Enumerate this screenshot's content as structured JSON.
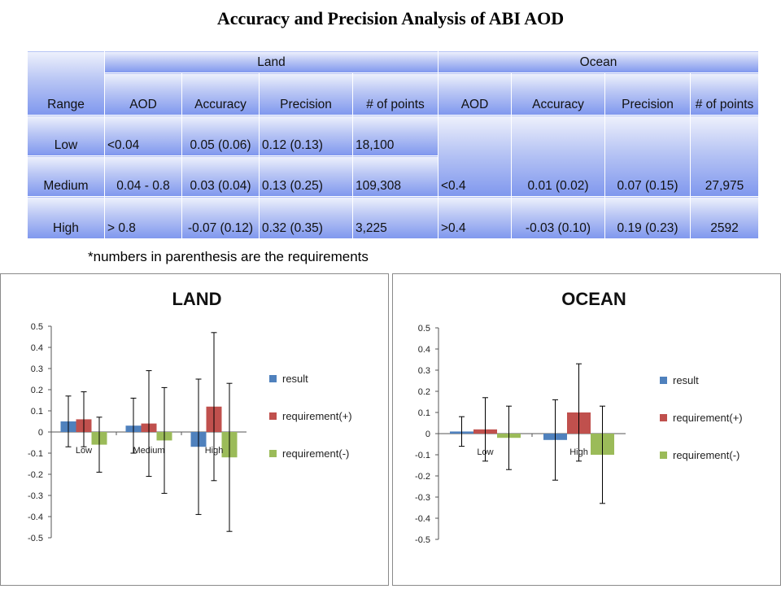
{
  "page_title": "Accuracy and Precision Analysis of ABI AOD",
  "table": {
    "range_header": "Range",
    "group_headers": [
      "Land",
      "Ocean"
    ],
    "sub_headers": [
      "AOD",
      "Accuracy",
      "Precision",
      "# of points",
      "AOD",
      "Accuracy",
      "Precision",
      "# of points"
    ],
    "rows": [
      {
        "range": "Low",
        "land": [
          "<0.04",
          "0.05 (0.06)",
          "0.12 (0.13)",
          "18,100"
        ]
      },
      {
        "range": "Medium",
        "land": [
          "0.04 - 0.8",
          "0.03 (0.04)",
          "0.13 (0.25)",
          "109,308"
        ]
      },
      {
        "range": "High",
        "land": [
          "> 0.8",
          "-0.07 (0.12)",
          "0.32 (0.35)",
          "3,225"
        ]
      }
    ],
    "ocean_rows": [
      [
        "<0.4",
        "0.01 (0.02)",
        "0.07 (0.15)",
        "27,975"
      ],
      [
        ">0.4",
        "-0.03 (0.10)",
        "0.19 (0.23)",
        "2592"
      ]
    ]
  },
  "footnote": "*numbers in parenthesis are the requirements",
  "colors": {
    "result": "#4f81bd",
    "requirement_plus": "#c0504d",
    "requirement_minus": "#9bbb59"
  },
  "chart_data": [
    {
      "type": "bar",
      "title": "LAND",
      "categories": [
        "Low",
        "Medium",
        "High"
      ],
      "series": [
        {
          "name": "result",
          "values": [
            0.05,
            0.03,
            -0.07
          ],
          "error": [
            0.12,
            0.13,
            0.32
          ]
        },
        {
          "name": "requirement(+)",
          "values": [
            0.06,
            0.04,
            0.12
          ],
          "error": [
            0.13,
            0.25,
            0.35
          ]
        },
        {
          "name": "requirement(-)",
          "values": [
            -0.06,
            -0.04,
            -0.12
          ],
          "error": [
            0.13,
            0.25,
            0.35
          ]
        }
      ],
      "ylim": [
        -0.5,
        0.5
      ],
      "yticks": [
        0.5,
        0.4,
        0.3,
        0.2,
        0.1,
        0,
        -0.1,
        -0.2,
        -0.3,
        -0.4,
        -0.5
      ],
      "grid": false,
      "legend": "right"
    },
    {
      "type": "bar",
      "title": "OCEAN",
      "categories": [
        "Low",
        "High"
      ],
      "series": [
        {
          "name": "result",
          "values": [
            0.01,
            -0.03
          ],
          "error": [
            0.07,
            0.19
          ]
        },
        {
          "name": "requirement(+)",
          "values": [
            0.02,
            0.1
          ],
          "error": [
            0.15,
            0.23
          ]
        },
        {
          "name": "requirement(-)",
          "values": [
            -0.02,
            -0.1
          ],
          "error": [
            0.15,
            0.23
          ]
        }
      ],
      "ylim": [
        -0.5,
        0.5
      ],
      "yticks": [
        0.5,
        0.4,
        0.3,
        0.2,
        0.1,
        0,
        -0.1,
        -0.2,
        -0.3,
        -0.4,
        -0.5
      ],
      "grid": false,
      "legend": "right"
    }
  ]
}
